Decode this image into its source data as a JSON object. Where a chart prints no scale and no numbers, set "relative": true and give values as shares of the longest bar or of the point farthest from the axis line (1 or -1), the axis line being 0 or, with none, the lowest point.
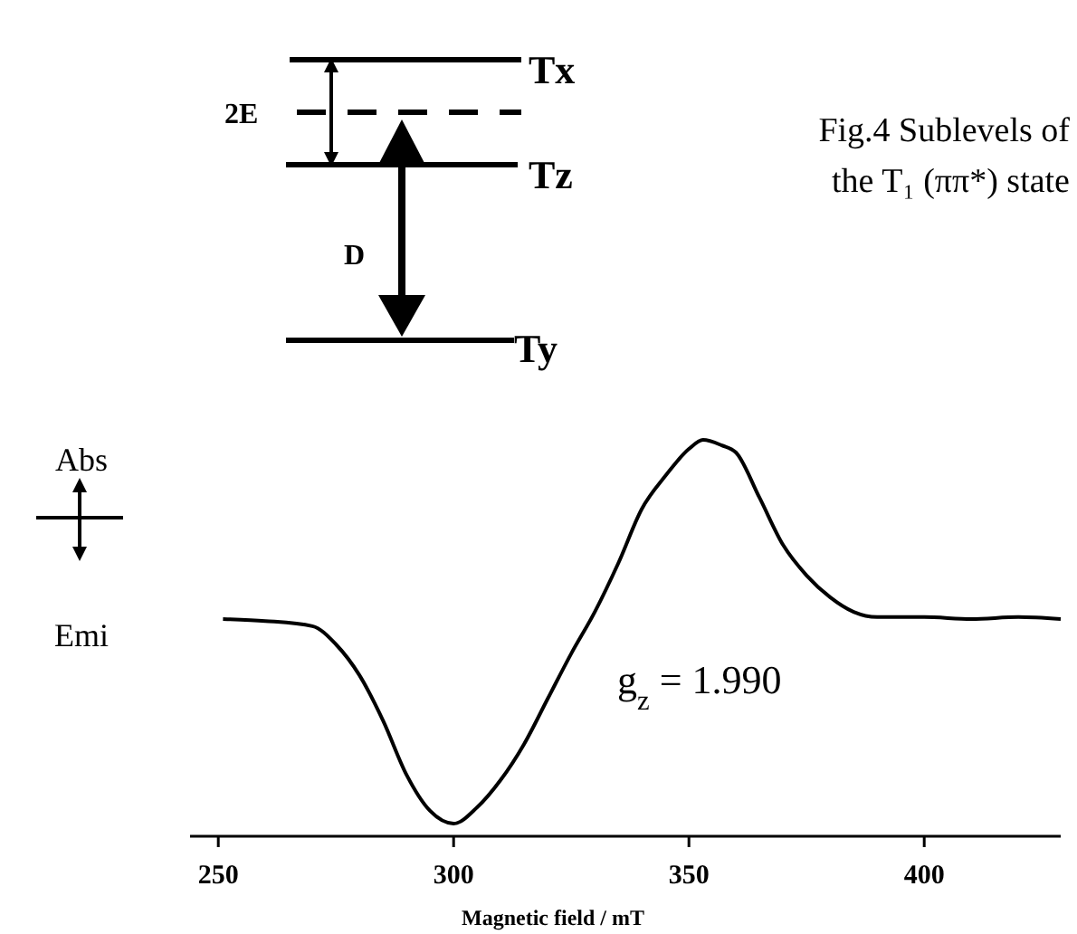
{
  "chart_data": {
    "type": "line",
    "relative": true,
    "title": "Fig.4 Sublevels of the T₁ (ππ*) state",
    "xlabel": "Magnetic field / mT",
    "xlim": [
      244,
      429
    ],
    "xticks": [
      250,
      300,
      350,
      400
    ],
    "color": "#000000",
    "x": [
      251,
      260,
      270,
      275,
      280,
      285,
      290,
      295,
      300,
      305,
      310,
      315,
      320,
      325,
      330,
      335,
      340,
      345,
      350,
      353,
      357,
      360,
      365,
      370,
      375,
      380,
      385,
      390,
      400,
      410,
      420,
      429
    ],
    "values": [
      0.548,
      0.543,
      0.53,
      0.484,
      0.406,
      0.292,
      0.155,
      0.064,
      0.032,
      0.073,
      0.142,
      0.233,
      0.347,
      0.461,
      0.566,
      0.689,
      0.826,
      0.909,
      0.977,
      1.0,
      0.986,
      0.968,
      0.854,
      0.735,
      0.658,
      0.603,
      0.566,
      0.553,
      0.553,
      0.548,
      0.553,
      0.548
    ],
    "annotations": [
      "Tx",
      "Tz",
      "Ty",
      "2E",
      "D",
      "Abs",
      "Emi",
      "g$_{z}$ = 1.990"
    ]
  }
}
